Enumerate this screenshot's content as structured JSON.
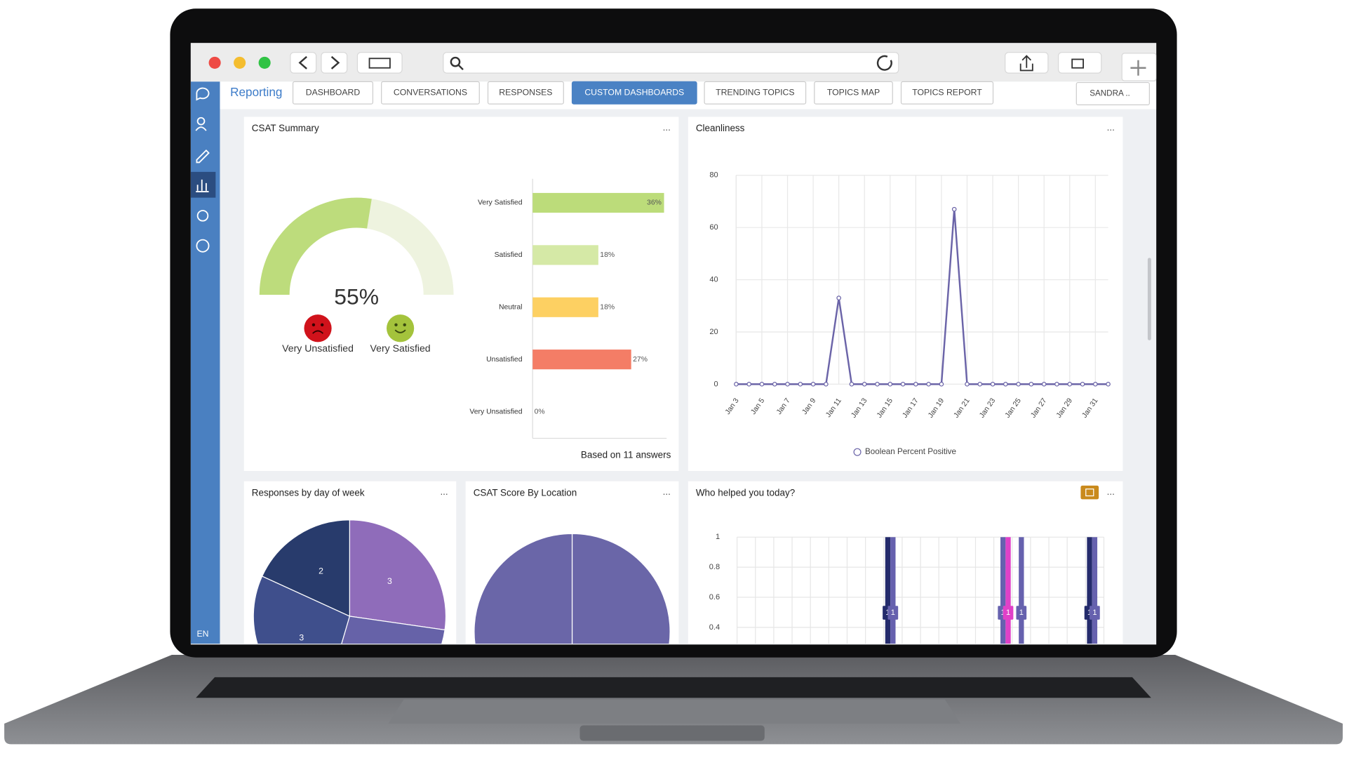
{
  "app": {
    "nav_title": "Reporting",
    "tabs": [
      "DASHBOARD",
      "CONVERSATIONS",
      "RESPONSES",
      "CUSTOM DASHBOARDS",
      "TRENDING TOPICS",
      "TOPICS MAP",
      "TOPICS REPORT"
    ],
    "active_tab": 3,
    "user": "SANDRA ..",
    "language": "EN",
    "menu": "..."
  },
  "chart_data": [
    {
      "type": "gauge",
      "title": "CSAT Summary",
      "value": 55,
      "value_label": "55%",
      "color": "#bddc7c",
      "min_label": "Very Unsatisfied",
      "max_label": "Very Satisfied"
    },
    {
      "type": "bar",
      "orientation": "horizontal",
      "categories": [
        "Very Satisfied",
        "Satisfied",
        "Neutral",
        "Unsatisfied",
        "Very Unsatisfied"
      ],
      "values": [
        36,
        18,
        18,
        27,
        0
      ],
      "value_labels": [
        "36%",
        "18%",
        "18%",
        "27%",
        "0%"
      ],
      "colors": [
        "#bcdc7a",
        "#d5e9a6",
        "#fdd062",
        "#f47d66",
        "#cccccc"
      ],
      "note": "Based on 11 answers"
    },
    {
      "type": "line",
      "title": "Cleanliness",
      "categories": [
        "Jan 3",
        null,
        "Jan 5",
        null,
        "Jan 7",
        null,
        "Jan 9",
        null,
        "Jan 11",
        null,
        "Jan 13",
        null,
        "Jan 15",
        null,
        "Jan 17",
        null,
        "Jan 19",
        null,
        "Jan 21",
        null,
        "Jan 23",
        null,
        "Jan 25",
        null,
        "Jan 27",
        null,
        "Jan 29",
        null,
        "Jan 31",
        null
      ],
      "series": [
        {
          "name": "Boolean Percent Positive",
          "color": "#6b64a8",
          "values": [
            0,
            0,
            0,
            0,
            0,
            0,
            0,
            0,
            33,
            0,
            0,
            0,
            0,
            0,
            0,
            0,
            0,
            67,
            0,
            0,
            0,
            0,
            0,
            0,
            0,
            0,
            0,
            0,
            0,
            0
          ]
        }
      ],
      "ylim": [
        0,
        80
      ],
      "yticks": [
        0,
        20,
        40,
        60,
        80
      ],
      "grid": true
    },
    {
      "type": "pie",
      "title": "Responses by day of week",
      "values": [
        3,
        3,
        3,
        2
      ],
      "colors": [
        "#8f6cba",
        "#6662a8",
        "#3f4f8c",
        "#283b6c"
      ]
    },
    {
      "type": "pie",
      "title": "CSAT Score By Location",
      "values": [
        1,
        1
      ],
      "colors": [
        "#6a66a8",
        "#6a66a8"
      ]
    },
    {
      "type": "bar",
      "title": "Who helped you today?",
      "categories": [
        null,
        null,
        null,
        null,
        null,
        null,
        null,
        null,
        null,
        null,
        null,
        null,
        null,
        null,
        null,
        null,
        null,
        null,
        null,
        null
      ],
      "series": [
        {
          "color": "#242b6c",
          "values": [
            null,
            null,
            null,
            null,
            null,
            null,
            null,
            null,
            1,
            null,
            null,
            null,
            null,
            null,
            null,
            null,
            null,
            null,
            null,
            1
          ]
        },
        {
          "color": "#6661ae",
          "values": [
            null,
            null,
            null,
            null,
            null,
            null,
            null,
            null,
            1,
            null,
            null,
            null,
            null,
            null,
            1,
            1,
            null,
            null,
            null,
            1
          ]
        },
        {
          "color": "#e040c8",
          "values": [
            null,
            null,
            null,
            null,
            null,
            null,
            null,
            null,
            null,
            null,
            null,
            null,
            null,
            null,
            1,
            null,
            null,
            null,
            null,
            null
          ]
        }
      ],
      "ylim": [
        0,
        1
      ],
      "yticks": [
        0.4,
        0.6,
        0.8,
        1
      ],
      "grid": true
    }
  ]
}
